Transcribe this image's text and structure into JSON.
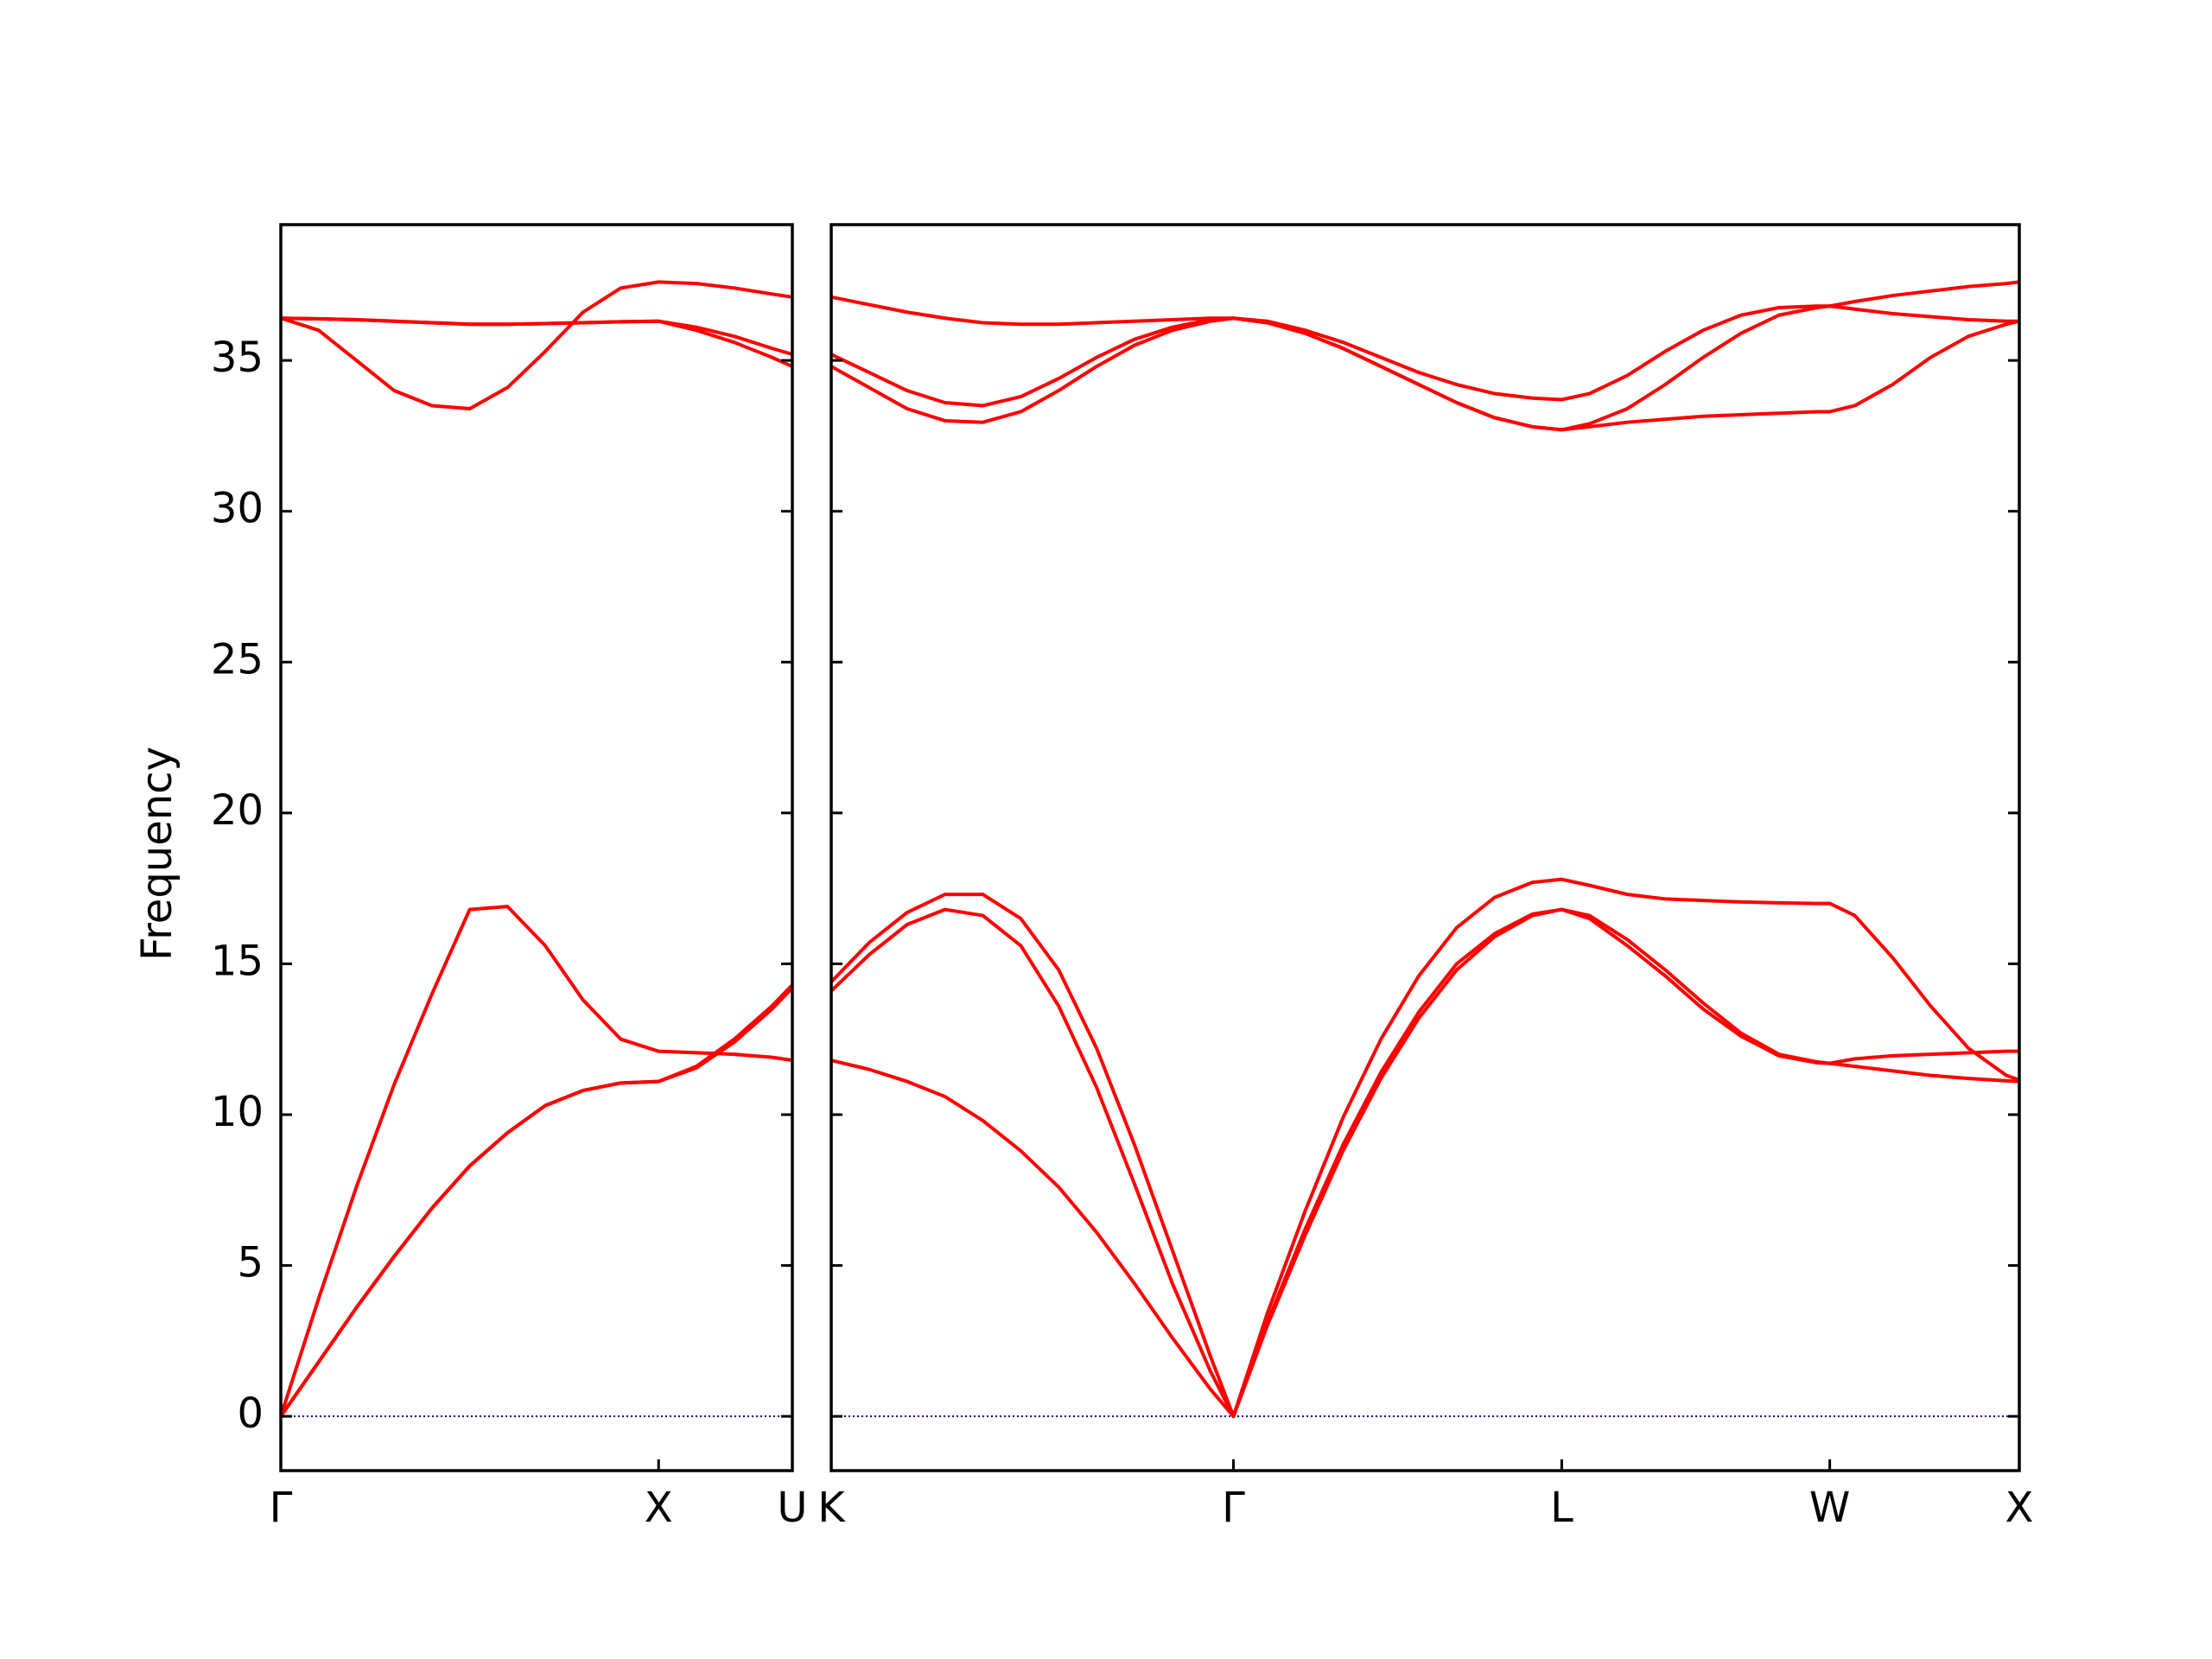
{
  "chart_data": [
    {
      "type": "line",
      "ylabel": "Frequency",
      "color": "#ff0000",
      "ylim": [
        -1.8,
        39.5
      ],
      "yticks": [
        0,
        5,
        10,
        15,
        20,
        25,
        30,
        35
      ],
      "hline": {
        "value": 0,
        "color": "#00008b"
      },
      "xlim": [
        0,
        1.354
      ],
      "xticks": [
        {
          "value": 0,
          "label": "Γ"
        },
        {
          "value": 1.0,
          "label": "X"
        },
        {
          "value": 1.354,
          "label": "U"
        }
      ],
      "x": [
        0,
        0.1,
        0.2,
        0.3,
        0.4,
        0.5,
        0.6,
        0.7,
        0.8,
        0.9,
        1.0,
        1.1,
        1.2,
        1.3,
        1.354
      ],
      "series": [
        {
          "values": [
            0,
            1.8,
            3.6,
            5.3,
            6.9,
            8.3,
            9.4,
            10.3,
            10.8,
            11.05,
            11.1,
            11.6,
            12.5,
            13.6,
            14.3
          ]
        },
        {
          "values": [
            0,
            1.8,
            3.6,
            5.3,
            6.9,
            8.3,
            9.4,
            10.3,
            10.8,
            11.05,
            11.1,
            11.55,
            12.4,
            13.5,
            14.2
          ]
        },
        {
          "values": [
            0,
            3.9,
            7.6,
            11.0,
            14.0,
            16.8,
            16.9,
            15.6,
            13.8,
            12.5,
            12.1,
            12.05,
            12.0,
            11.9,
            11.8
          ]
        },
        {
          "values": [
            36.4,
            36.0,
            35.0,
            34.0,
            33.5,
            33.4,
            34.1,
            35.3,
            36.6,
            37.4,
            37.6,
            37.55,
            37.4,
            37.2,
            37.1
          ]
        },
        {
          "values": [
            36.4,
            36.38,
            36.35,
            36.3,
            36.25,
            36.2,
            36.2,
            36.22,
            36.25,
            36.28,
            36.3,
            36.1,
            35.8,
            35.4,
            35.2
          ]
        },
        {
          "values": [
            36.4,
            36.38,
            36.35,
            36.3,
            36.25,
            36.2,
            36.2,
            36.22,
            36.25,
            36.28,
            36.3,
            36.0,
            35.6,
            35.1,
            34.8
          ]
        }
      ]
    },
    {
      "type": "line",
      "sharey": true,
      "color": "#ff0000",
      "xlim": [
        0,
        3.134
      ],
      "xticks": [
        {
          "value": 0,
          "label": "K"
        },
        {
          "value": 1.061,
          "label": "Γ"
        },
        {
          "value": 1.927,
          "label": "L"
        },
        {
          "value": 2.634,
          "label": "W"
        },
        {
          "value": 3.134,
          "label": "X"
        }
      ],
      "x": [
        0,
        0.1,
        0.2,
        0.3,
        0.4,
        0.5,
        0.6,
        0.7,
        0.8,
        0.9,
        1.0,
        1.061,
        1.15,
        1.25,
        1.35,
        1.45,
        1.55,
        1.65,
        1.75,
        1.85,
        1.927,
        2.0,
        2.1,
        2.2,
        2.3,
        2.4,
        2.5,
        2.6,
        2.634,
        2.7,
        2.8,
        2.9,
        3.0,
        3.1,
        3.134
      ],
      "series": [
        {
          "values": [
            11.8,
            11.5,
            11.1,
            10.6,
            9.8,
            8.8,
            7.6,
            6.1,
            4.4,
            2.6,
            0.9,
            0,
            3.0,
            6.0,
            8.8,
            11.2,
            13.2,
            14.8,
            15.9,
            16.6,
            16.8,
            16.5,
            15.6,
            14.6,
            13.5,
            12.6,
            11.95,
            11.72,
            11.7,
            11.6,
            11.45,
            11.3,
            11.2,
            11.12,
            11.1
          ]
        },
        {
          "values": [
            14.1,
            15.3,
            16.3,
            16.8,
            16.6,
            15.6,
            13.6,
            10.9,
            7.7,
            4.4,
            1.5,
            0,
            3.1,
            6.2,
            9.0,
            11.4,
            13.4,
            15.0,
            16.0,
            16.65,
            16.8,
            16.6,
            15.8,
            14.8,
            13.7,
            12.7,
            12.0,
            11.75,
            11.7,
            11.85,
            11.95,
            12.0,
            12.05,
            12.1,
            12.1
          ]
        },
        {
          "values": [
            14.4,
            15.7,
            16.7,
            17.3,
            17.3,
            16.5,
            14.8,
            12.2,
            9.0,
            5.5,
            2.0,
            0,
            3.4,
            6.8,
            9.9,
            12.5,
            14.6,
            16.2,
            17.2,
            17.7,
            17.8,
            17.6,
            17.3,
            17.15,
            17.1,
            17.05,
            17.02,
            17.0,
            17.0,
            16.6,
            15.2,
            13.6,
            12.2,
            11.3,
            11.15
          ]
        },
        {
          "values": [
            37.1,
            36.85,
            36.6,
            36.4,
            36.25,
            36.2,
            36.2,
            36.25,
            36.3,
            36.35,
            36.4,
            36.4,
            36.3,
            36.0,
            35.6,
            35.1,
            34.6,
            34.2,
            33.9,
            33.75,
            33.7,
            33.9,
            34.5,
            35.3,
            36.0,
            36.5,
            36.75,
            36.8,
            36.8,
            36.95,
            37.15,
            37.3,
            37.45,
            37.55,
            37.6
          ]
        },
        {
          "values": [
            35.2,
            34.6,
            34.0,
            33.6,
            33.5,
            33.8,
            34.4,
            35.1,
            35.7,
            36.1,
            36.35,
            36.4,
            36.25,
            35.9,
            35.4,
            34.8,
            34.2,
            33.6,
            33.1,
            32.8,
            32.7,
            32.9,
            33.4,
            34.2,
            35.1,
            35.9,
            36.5,
            36.75,
            36.8,
            36.7,
            36.55,
            36.45,
            36.35,
            36.3,
            36.3
          ]
        },
        {
          "values": [
            34.8,
            34.1,
            33.4,
            33.0,
            32.95,
            33.3,
            34.0,
            34.8,
            35.5,
            36.0,
            36.3,
            36.4,
            36.25,
            35.9,
            35.4,
            34.8,
            34.2,
            33.6,
            33.1,
            32.8,
            32.7,
            32.8,
            32.95,
            33.05,
            33.15,
            33.2,
            33.25,
            33.3,
            33.3,
            33.5,
            34.2,
            35.1,
            35.8,
            36.2,
            36.3
          ]
        }
      ]
    }
  ]
}
